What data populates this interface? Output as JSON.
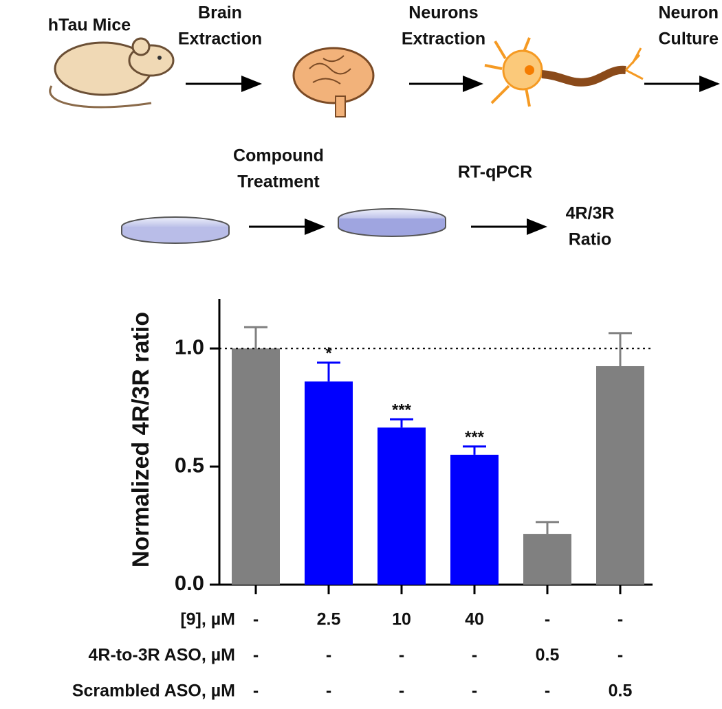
{
  "workflow": {
    "steps": [
      {
        "lines": [
          "hTau Mice"
        ]
      },
      {
        "lines": [
          "Brain",
          "Extraction"
        ]
      },
      {
        "lines": [
          "Neurons",
          "Extraction"
        ]
      },
      {
        "lines": [
          "Neuron",
          "Culture"
        ]
      },
      {
        "lines": [
          "Compound",
          "Treatment"
        ]
      },
      {
        "lines": [
          "RT-qPCR"
        ]
      },
      {
        "lines": [
          "4R/3R",
          "Ratio"
        ]
      }
    ]
  },
  "chart_data": {
    "type": "bar",
    "y_label": "Normalized 4R/3R ratio",
    "categories": [
      null,
      null,
      null,
      null,
      null,
      null
    ],
    "values": [
      1.0,
      0.86,
      0.665,
      0.55,
      0.215,
      0.925
    ],
    "errors": [
      0.09,
      0.08,
      0.035,
      0.035,
      0.05,
      0.14
    ],
    "colors": [
      "#808080",
      "#0000ff",
      "#0000ff",
      "#0000ff",
      "#808080",
      "#808080"
    ],
    "significance": [
      null,
      "*",
      "***",
      "***",
      null,
      null
    ],
    "reference_line": 1.0,
    "ylim": [
      0,
      1.21
    ],
    "yticks": [
      {
        "value": 0,
        "label": "0.0"
      },
      {
        "value": 0.5,
        "label": "0.5"
      },
      {
        "value": 1,
        "label": "1.0"
      }
    ],
    "condition_table": [
      {
        "label": "[9], µM",
        "cells": [
          "-",
          "2.5",
          "10",
          "40",
          "-",
          "-"
        ]
      },
      {
        "label": "4R-to-3R ASO, µM",
        "cells": [
          "-",
          "-",
          "-",
          "-",
          "0.5",
          "-"
        ]
      },
      {
        "label": "Scrambled ASO, µM",
        "cells": [
          "-",
          "-",
          "-",
          "-",
          "-",
          "0.5"
        ]
      }
    ]
  }
}
